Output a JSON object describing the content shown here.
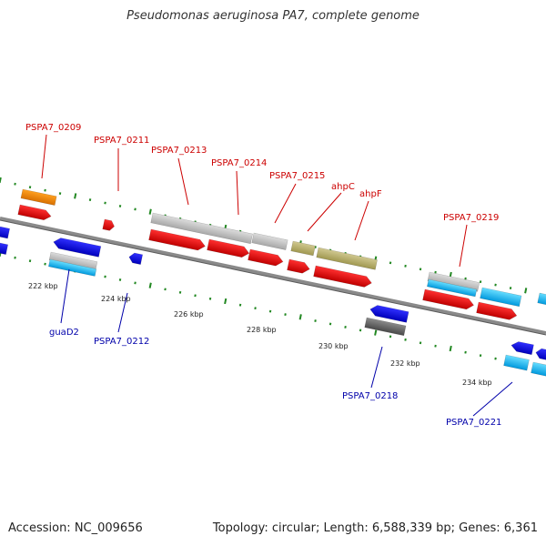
{
  "title": "Pseudomonas aeruginosa PA7, complete genome",
  "footer": {
    "accession": "Accession: NC_009656",
    "topology": "Topology: circular; Length: 6,588,339 bp; Genes: 6,361"
  },
  "colors": {
    "cds_red": "#e00000",
    "cds_blue": "#0000ee",
    "gene_gray": "#c0c0c0",
    "gene_dark": "#6a6a6a",
    "gene_orange": "#f08c00",
    "gene_olive": "#b8b070",
    "gene_cyan": "#22bbee",
    "backbone": "#8a8a8a",
    "tick": "#228822"
  },
  "scale_labels": [
    "222 kbp",
    "224 kbp",
    "226 kbp",
    "228 kbp",
    "230 kbp",
    "232 kbp",
    "234 kbp"
  ],
  "top_labels": [
    "PSPA7_0209",
    "PSPA7_0211",
    "PSPA7_0213",
    "PSPA7_0214",
    "PSPA7_0215",
    "ahpC",
    "ahpF",
    "PSPA7_0219"
  ],
  "bottom_labels": [
    "guaD2",
    "PSPA7_0212",
    "PSPA7_0218",
    "PSPA7_0221"
  ]
}
